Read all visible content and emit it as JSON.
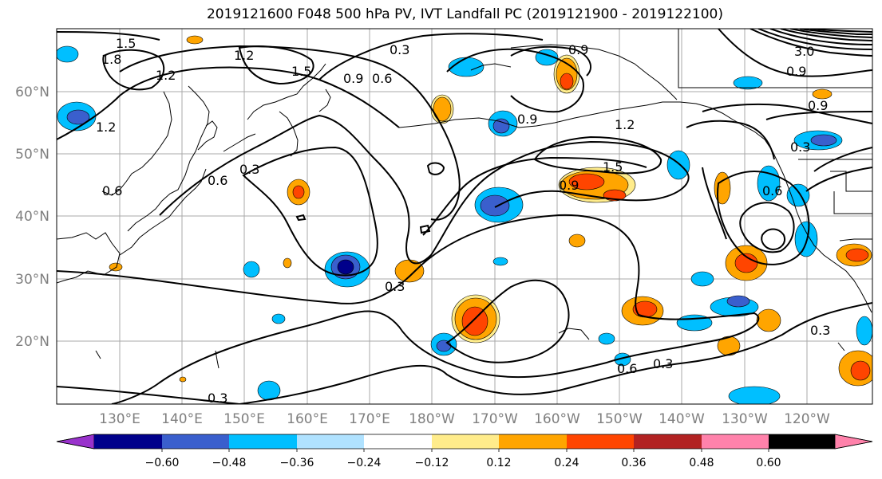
{
  "title": "2019121600 F048 500 hPa PV, IVT Landfall PC (2019121900 - 2019122100)",
  "lat_labels": [
    "60°N",
    "50°N",
    "40°N",
    "30°N",
    "20°N"
  ],
  "lon_labels": [
    "130°E",
    "140°E",
    "150°E",
    "160°E",
    "170°E",
    "180°W",
    "170°W",
    "160°W",
    "150°W",
    "140°W",
    "130°W",
    "120°W"
  ],
  "contour_labels": [
    "1.5",
    "1.8",
    "1.2",
    "1.2",
    "1.5",
    "1.2",
    "0.3",
    "0.9",
    "0.6",
    "0.9",
    "0.9",
    "1.2",
    "1.5",
    "0.9",
    "0.6",
    "0.3",
    "0.6",
    "0.3",
    "0.6",
    "0.6",
    "0.3",
    "0.3",
    "0.9",
    "3.0",
    "0.9",
    "0.3",
    "0.3"
  ],
  "colorbar": {
    "ticks": [
      "−0.60",
      "−0.48",
      "−0.36",
      "−0.24",
      "−0.12",
      "0.12",
      "0.24",
      "0.36",
      "0.48",
      "0.60"
    ],
    "colors": [
      "#9932cc",
      "#00008b",
      "#3a5fcd",
      "#00bfff",
      "#b0e2ff",
      "#ffffff",
      "#ffec8b",
      "#ffa500",
      "#ff4500",
      "#b22222",
      "#ff82ab"
    ]
  },
  "colors": {
    "contour": "#000000",
    "coast": "#000000",
    "grid": "#a9a9a9",
    "tick_label": "#7f7f7f"
  }
}
